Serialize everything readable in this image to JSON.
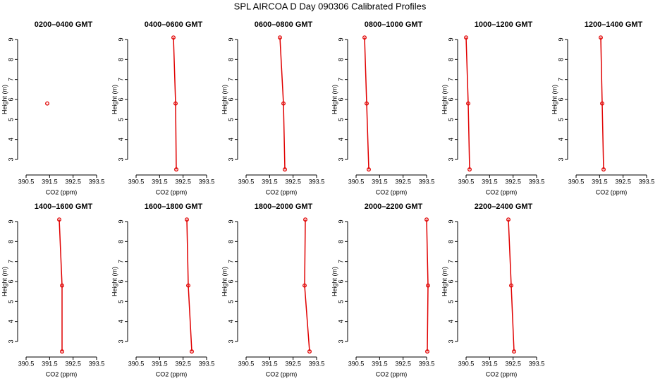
{
  "title": "SPL AIRCOA D  Day 090306  Calibrated Profiles",
  "chart_data": [
    {
      "type": "line",
      "title": "0200–0400 GMT",
      "x_label": "CO2 (ppm)",
      "y_label": "Height (m)",
      "color": "#e00000",
      "x": [
        391.4
      ],
      "y": [
        5.8
      ],
      "xlim": [
        390.35,
        393.65
      ],
      "ylim": [
        2.3,
        9.3
      ],
      "xticks": [
        390.5,
        391.5,
        392.5,
        393.5
      ],
      "yticks": [
        3,
        4,
        5,
        6,
        7,
        8,
        9
      ]
    },
    {
      "type": "line",
      "title": "0400–0600 GMT",
      "x_label": "CO2 (ppm)",
      "y_label": "Height (m)",
      "color": "#e00000",
      "x": [
        392.09,
        392.18,
        392.21
      ],
      "y": [
        9.1,
        5.8,
        2.5
      ],
      "xlim": [
        390.35,
        393.65
      ],
      "ylim": [
        2.3,
        9.3
      ],
      "xticks": [
        390.5,
        391.5,
        392.5,
        393.5
      ],
      "yticks": [
        3,
        4,
        5,
        6,
        7,
        8,
        9
      ]
    },
    {
      "type": "line",
      "title": "0600–0800 GMT",
      "x_label": "CO2 (ppm)",
      "y_label": "Height (m)",
      "color": "#e00000",
      "x": [
        391.94,
        392.09,
        392.15
      ],
      "y": [
        9.1,
        5.8,
        2.5
      ],
      "xlim": [
        390.35,
        393.65
      ],
      "ylim": [
        2.3,
        9.3
      ],
      "xticks": [
        390.5,
        391.5,
        392.5,
        393.5
      ],
      "yticks": [
        3,
        4,
        5,
        6,
        7,
        8,
        9
      ]
    },
    {
      "type": "line",
      "title": "0800–1000 GMT",
      "x_label": "CO2 (ppm)",
      "y_label": "Height (m)",
      "color": "#e00000",
      "x": [
        390.86,
        390.95,
        391.04
      ],
      "y": [
        9.1,
        5.8,
        2.5
      ],
      "xlim": [
        390.35,
        393.65
      ],
      "ylim": [
        2.3,
        9.3
      ],
      "xticks": [
        390.5,
        391.5,
        392.5,
        393.5
      ],
      "yticks": [
        3,
        4,
        5,
        6,
        7,
        8,
        9
      ]
    },
    {
      "type": "line",
      "title": "1000–1200 GMT",
      "x_label": "CO2 (ppm)",
      "y_label": "Height (m)",
      "color": "#e00000",
      "x": [
        390.5,
        390.59,
        390.65
      ],
      "y": [
        9.1,
        5.8,
        2.5
      ],
      "xlim": [
        390.35,
        393.65
      ],
      "ylim": [
        2.3,
        9.3
      ],
      "xticks": [
        390.5,
        391.5,
        392.5,
        393.5
      ],
      "yticks": [
        3,
        4,
        5,
        6,
        7,
        8,
        9
      ]
    },
    {
      "type": "line",
      "title": "1200–1400 GMT",
      "x_label": "CO2 (ppm)",
      "y_label": "Height (m)",
      "color": "#e00000",
      "x": [
        391.55,
        391.61,
        391.67
      ],
      "y": [
        9.1,
        5.8,
        2.5
      ],
      "xlim": [
        390.35,
        393.65
      ],
      "ylim": [
        2.3,
        9.3
      ],
      "xticks": [
        390.5,
        391.5,
        392.5,
        393.5
      ],
      "yticks": [
        3,
        4,
        5,
        6,
        7,
        8,
        9
      ]
    },
    {
      "type": "line",
      "title": "1400–1600 GMT",
      "x_label": "CO2 (ppm)",
      "y_label": "Height (m)",
      "color": "#e00000",
      "x": [
        391.91,
        392.03,
        392.03
      ],
      "y": [
        9.1,
        5.8,
        2.5
      ],
      "xlim": [
        390.35,
        393.65
      ],
      "ylim": [
        2.3,
        9.3
      ],
      "xticks": [
        390.5,
        391.5,
        392.5,
        393.5
      ],
      "yticks": [
        3,
        4,
        5,
        6,
        7,
        8,
        9
      ]
    },
    {
      "type": "line",
      "title": "1600–1800 GMT",
      "x_label": "CO2 (ppm)",
      "y_label": "Height (m)",
      "color": "#e00000",
      "x": [
        392.66,
        392.72,
        392.87
      ],
      "y": [
        9.1,
        5.8,
        2.5
      ],
      "xlim": [
        390.35,
        393.65
      ],
      "ylim": [
        2.3,
        9.3
      ],
      "xticks": [
        390.5,
        391.5,
        392.5,
        393.5
      ],
      "yticks": [
        3,
        4,
        5,
        6,
        7,
        8,
        9
      ]
    },
    {
      "type": "line",
      "title": "1800–2000 GMT",
      "x_label": "CO2 (ppm)",
      "y_label": "Height (m)",
      "color": "#e00000",
      "x": [
        393.02,
        392.99,
        393.2
      ],
      "y": [
        9.1,
        5.8,
        2.5
      ],
      "xlim": [
        390.35,
        393.65
      ],
      "ylim": [
        2.3,
        9.3
      ],
      "xticks": [
        390.5,
        391.5,
        392.5,
        393.5
      ],
      "yticks": [
        3,
        4,
        5,
        6,
        7,
        8,
        9
      ]
    },
    {
      "type": "line",
      "title": "2000–2200 GMT",
      "x_label": "CO2 (ppm)",
      "y_label": "Height (m)",
      "color": "#e00000",
      "x": [
        393.5,
        393.56,
        393.53
      ],
      "y": [
        9.1,
        5.8,
        2.5
      ],
      "xlim": [
        390.35,
        393.65
      ],
      "ylim": [
        2.3,
        9.3
      ],
      "xticks": [
        390.5,
        391.5,
        392.5,
        393.5
      ],
      "yticks": [
        3,
        4,
        5,
        6,
        7,
        8,
        9
      ]
    },
    {
      "type": "line",
      "title": "2200–2400 GMT",
      "x_label": "CO2 (ppm)",
      "y_label": "Height (m)",
      "color": "#e00000",
      "x": [
        392.3,
        392.42,
        392.54
      ],
      "y": [
        9.1,
        5.8,
        2.5
      ],
      "xlim": [
        390.35,
        393.65
      ],
      "ylim": [
        2.3,
        9.3
      ],
      "xticks": [
        390.5,
        391.5,
        392.5,
        393.5
      ],
      "yticks": [
        3,
        4,
        5,
        6,
        7,
        8,
        9
      ]
    }
  ]
}
